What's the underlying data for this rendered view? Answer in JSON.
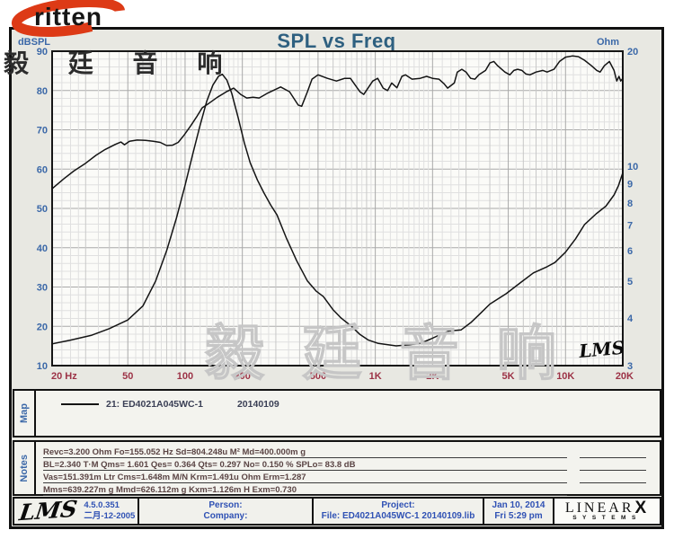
{
  "brand": {
    "name": "ritten",
    "name_cn": "毅 廷 音 响",
    "swoosh_color": "#dd3a16"
  },
  "title": "SPL vs Freq",
  "watermark": "毅 廷 音 响",
  "chart_data": {
    "type": "line",
    "title": "SPL vs Freq",
    "grid": true,
    "corner_brand": "LMS",
    "x_axis": {
      "scale": "log",
      "min": 20,
      "max": 20000,
      "ticks": [
        20,
        50,
        100,
        200,
        500,
        1000,
        2000,
        5000,
        10000,
        20000
      ],
      "tick_labels": [
        "20 Hz",
        "50",
        "100",
        "200",
        "500",
        "1K",
        "2K",
        "5K",
        "10K",
        "20K"
      ]
    },
    "y_left": {
      "label": "dBSPL",
      "scale": "linear",
      "min": 10,
      "max": 90,
      "ticks": [
        90,
        80,
        70,
        60,
        50,
        40,
        30,
        20,
        10
      ]
    },
    "y_right": {
      "label": "Ohm",
      "scale": "log",
      "min": 3,
      "max": 20,
      "ticks": [
        20,
        10,
        9,
        8,
        7,
        6,
        5,
        4,
        3
      ]
    },
    "series": [
      {
        "name": "SPL dB (21: ED4021A045WC-1)",
        "axis": "left",
        "points": [
          [
            20,
            55
          ],
          [
            23,
            57.5
          ],
          [
            26,
            59.5
          ],
          [
            30,
            61.5
          ],
          [
            34,
            63.5
          ],
          [
            38,
            65
          ],
          [
            43,
            66.3
          ],
          [
            46,
            66.9
          ],
          [
            48,
            66.2
          ],
          [
            51,
            67.1
          ],
          [
            56,
            67.4
          ],
          [
            62,
            67.3
          ],
          [
            68,
            67.1
          ],
          [
            74,
            66.8
          ],
          [
            80,
            66
          ],
          [
            86,
            66.1
          ],
          [
            92,
            66.8
          ],
          [
            99,
            68.7
          ],
          [
            107,
            71
          ],
          [
            115,
            73.3
          ],
          [
            123,
            75.6
          ],
          [
            133,
            76.7
          ],
          [
            148,
            78.3
          ],
          [
            165,
            79.7
          ],
          [
            180,
            80.6
          ],
          [
            196,
            79
          ],
          [
            211,
            78.1
          ],
          [
            228,
            78.3
          ],
          [
            245,
            78.1
          ],
          [
            273,
            79.4
          ],
          [
            318,
            80.9
          ],
          [
            354,
            79.7
          ],
          [
            393,
            76.3
          ],
          [
            410,
            76
          ],
          [
            440,
            79.7
          ],
          [
            465,
            82.9
          ],
          [
            500,
            84
          ],
          [
            560,
            83.1
          ],
          [
            625,
            82.4
          ],
          [
            690,
            83.1
          ],
          [
            740,
            83.1
          ],
          [
            830,
            79.7
          ],
          [
            870,
            79
          ],
          [
            970,
            82.4
          ],
          [
            1030,
            83.1
          ],
          [
            1100,
            80.6
          ],
          [
            1160,
            80
          ],
          [
            1220,
            81.9
          ],
          [
            1300,
            80.7
          ],
          [
            1380,
            83.6
          ],
          [
            1440,
            84
          ],
          [
            1560,
            82.9
          ],
          [
            1720,
            83.1
          ],
          [
            1860,
            83.6
          ],
          [
            2000,
            83.1
          ],
          [
            2160,
            82.9
          ],
          [
            2300,
            81.7
          ],
          [
            2400,
            80.6
          ],
          [
            2600,
            81.9
          ],
          [
            2700,
            84.7
          ],
          [
            2850,
            85.4
          ],
          [
            3000,
            84.7
          ],
          [
            3170,
            83.1
          ],
          [
            3340,
            82.9
          ],
          [
            3500,
            84
          ],
          [
            3800,
            85.1
          ],
          [
            4000,
            87
          ],
          [
            4200,
            87.4
          ],
          [
            4400,
            86.3
          ],
          [
            4800,
            84.7
          ],
          [
            5100,
            84
          ],
          [
            5350,
            85.1
          ],
          [
            5600,
            85.4
          ],
          [
            5900,
            85.1
          ],
          [
            6200,
            84.2
          ],
          [
            6500,
            84
          ],
          [
            7000,
            84.7
          ],
          [
            7600,
            85.1
          ],
          [
            8000,
            84.7
          ],
          [
            8700,
            85.4
          ],
          [
            9300,
            87.4
          ],
          [
            10000,
            88.5
          ],
          [
            10900,
            88.8
          ],
          [
            11700,
            88.6
          ],
          [
            12600,
            87.7
          ],
          [
            13700,
            86.3
          ],
          [
            14600,
            85.1
          ],
          [
            15200,
            84.7
          ],
          [
            16000,
            86.3
          ],
          [
            17000,
            87.4
          ],
          [
            18000,
            85.1
          ],
          [
            18600,
            82.4
          ],
          [
            19100,
            83.6
          ],
          [
            19500,
            82.4
          ],
          [
            20000,
            83.1
          ]
        ]
      },
      {
        "name": "Impedance Ohm (21: ED4021A045WC-1)",
        "axis": "right",
        "points": [
          [
            20,
            3.42
          ],
          [
            25,
            3.5
          ],
          [
            32,
            3.6
          ],
          [
            40,
            3.75
          ],
          [
            50,
            3.95
          ],
          [
            60,
            4.3
          ],
          [
            70,
            5.0
          ],
          [
            80,
            6.0
          ],
          [
            90,
            7.3
          ],
          [
            100,
            8.9
          ],
          [
            110,
            10.8
          ],
          [
            120,
            12.8
          ],
          [
            130,
            14.8
          ],
          [
            140,
            16.3
          ],
          [
            150,
            17.2
          ],
          [
            157,
            17.4
          ],
          [
            166,
            16.8
          ],
          [
            176,
            15.5
          ],
          [
            190,
            13.4
          ],
          [
            205,
            11.5
          ],
          [
            220,
            10.2
          ],
          [
            240,
            9.2
          ],
          [
            260,
            8.5
          ],
          [
            282,
            7.9
          ],
          [
            304,
            7.45
          ],
          [
            340,
            6.5
          ],
          [
            386,
            5.65
          ],
          [
            440,
            5.0
          ],
          [
            490,
            4.7
          ],
          [
            534,
            4.55
          ],
          [
            600,
            4.2
          ],
          [
            660,
            4.0
          ],
          [
            747,
            3.81
          ],
          [
            830,
            3.62
          ],
          [
            920,
            3.5
          ],
          [
            1037,
            3.43
          ],
          [
            1287,
            3.38
          ],
          [
            1500,
            3.4
          ],
          [
            1723,
            3.43
          ],
          [
            1950,
            3.52
          ],
          [
            2286,
            3.65
          ],
          [
            2452,
            3.7
          ],
          [
            2823,
            3.72
          ],
          [
            3200,
            3.9
          ],
          [
            3514,
            4.08
          ],
          [
            4000,
            4.35
          ],
          [
            4880,
            4.63
          ],
          [
            5800,
            4.95
          ],
          [
            6773,
            5.25
          ],
          [
            8000,
            5.45
          ],
          [
            8800,
            5.59
          ],
          [
            10000,
            5.95
          ],
          [
            11300,
            6.45
          ],
          [
            12600,
            7.03
          ],
          [
            14500,
            7.5
          ],
          [
            16300,
            7.85
          ],
          [
            18000,
            8.4
          ],
          [
            19000,
            8.9
          ],
          [
            20000,
            9.6
          ]
        ]
      }
    ],
    "colors": {
      "curve": "#141414",
      "grid_major": "#a9a9a9",
      "grid_medium": "#c8c8c8",
      "grid_light": "#e0e0e0",
      "plot_bg": "#fbfbf8",
      "tick_left_right": "#3b68a8",
      "tick_x": "#9c3246",
      "watermark": "#c6c6c6"
    }
  },
  "map": {
    "label": "Map",
    "legend": {
      "index": "21: ED4021A045WC-1",
      "date": "20140109"
    }
  },
  "notes": {
    "label": "Notes",
    "lines": [
      {
        "text": "Revc=3.200 Ohm  Fo=155.052 Hz  Sd=804.248u M² Md=400.000m g",
        "extra": true
      },
      {
        "text": "BL=2.340 T·M  Qms= 1.601  Qes= 0.364  Qts= 0.297  No= 0.150 %  SPLo= 83.8 dB",
        "extra": true
      },
      {
        "text": "Vas=151.391m Ltr  Cms=1.648m M/N  Krm=1.491u Ohm  Erm=1.287",
        "extra": true
      },
      {
        "text": "Mms=639.227m g  Mmd=626.112m g  Kxm=1.126m H  Exm=0.730",
        "extra": false
      }
    ]
  },
  "footer": {
    "lms_logo": "LMS",
    "version": "4.5.0.351",
    "version_date": "二月-12-2005",
    "person_label": "Person:",
    "company_label": "Company:",
    "project_label": "Project:",
    "file_label": "File: ED4021A045WC-1  20140109.lib",
    "date": "Jan 10, 2014",
    "time": "Fri  5:29 pm",
    "brand_main": "LINEAR",
    "brand_x": "X",
    "brand_sub": "SYSTEMS"
  }
}
